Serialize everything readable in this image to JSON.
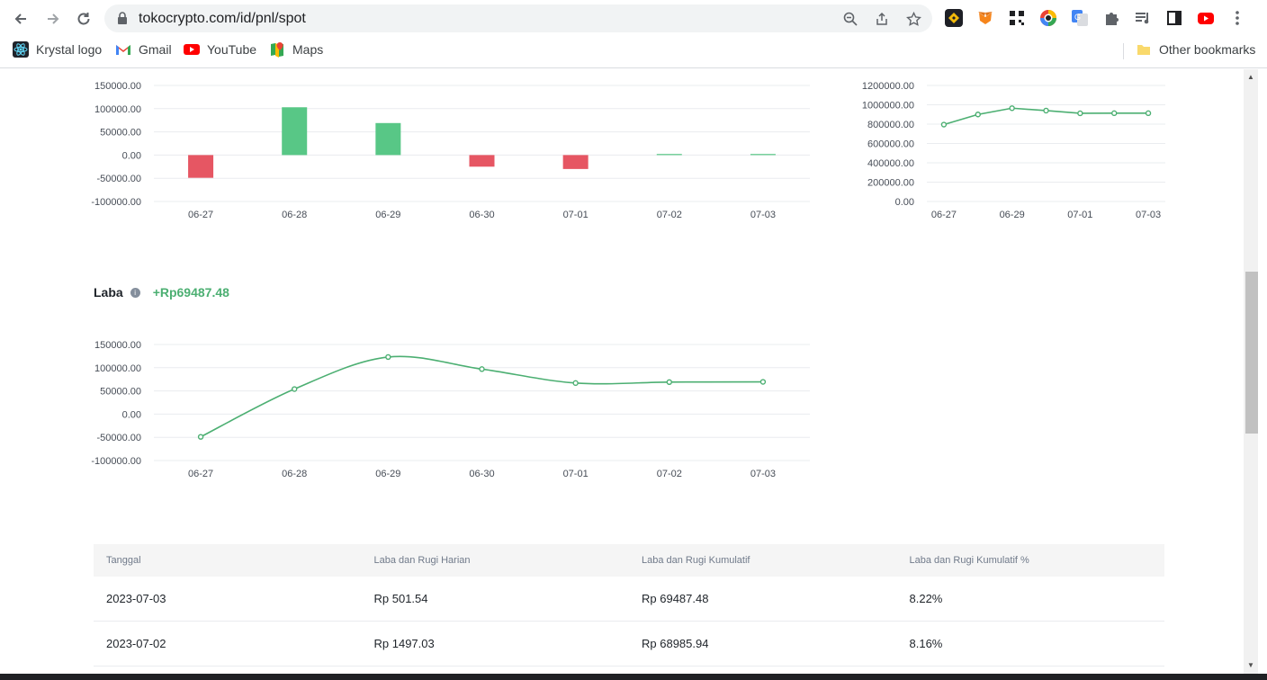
{
  "browser": {
    "url": "tokocrypto.com/id/pnl/spot",
    "bookmarks": [
      {
        "label": "Krystal logo",
        "icon": "krystal-icon"
      },
      {
        "label": "Gmail",
        "icon": "gmail-icon"
      },
      {
        "label": "YouTube",
        "icon": "youtube-icon"
      },
      {
        "label": "Maps",
        "icon": "maps-icon"
      }
    ],
    "other_bookmarks": "Other bookmarks"
  },
  "daily_chart": {
    "type": "bar",
    "categories": [
      "06-27",
      "06-28",
      "06-29",
      "06-30",
      "07-01",
      "07-02",
      "07-03"
    ],
    "values": [
      -49000,
      103000,
      69000,
      -25000,
      -30000,
      1497.03,
      501.54
    ],
    "yticks": [
      "150000.00",
      "100000.00",
      "50000.00",
      "0.00",
      "-50000.00",
      "-100000.00"
    ],
    "ylim": [
      -100000,
      150000
    ],
    "positive_color": "#58c786",
    "negative_color": "#e65663"
  },
  "asset_chart": {
    "type": "line",
    "categories": [
      "06-27",
      "06-28",
      "06-29",
      "06-30",
      "07-01",
      "07-02",
      "07-03"
    ],
    "xticks": [
      "06-27",
      "06-29",
      "07-01",
      "07-03"
    ],
    "values": [
      795000,
      900000,
      965000,
      940000,
      912000,
      913000,
      913000
    ],
    "yticks": [
      "1200000.00",
      "1000000.00",
      "800000.00",
      "600000.00",
      "400000.00",
      "200000.00",
      "0.00"
    ],
    "ylim": [
      0,
      1200000
    ],
    "color": "#4caf72"
  },
  "laba": {
    "title": "Laba",
    "value": "+Rp69487.48"
  },
  "laba_chart": {
    "type": "line",
    "categories": [
      "06-27",
      "06-28",
      "06-29",
      "06-30",
      "07-01",
      "07-02",
      "07-03"
    ],
    "values": [
      -49000,
      54000,
      123000,
      97000,
      67000,
      68985.94,
      69487.48
    ],
    "yticks": [
      "150000.00",
      "100000.00",
      "50000.00",
      "0.00",
      "-50000.00",
      "-100000.00"
    ],
    "ylim": [
      -100000,
      150000
    ],
    "color": "#4caf72"
  },
  "table": {
    "headers": [
      "Tanggal",
      "Laba dan Rugi Harian",
      "Laba dan Rugi Kumulatif",
      "Laba dan Rugi Kumulatif %"
    ],
    "rows": [
      [
        "2023-07-03",
        "Rp 501.54",
        "Rp 69487.48",
        "8.22%"
      ],
      [
        "2023-07-02",
        "Rp 1497.03",
        "Rp 68985.94",
        "8.16%"
      ]
    ]
  }
}
